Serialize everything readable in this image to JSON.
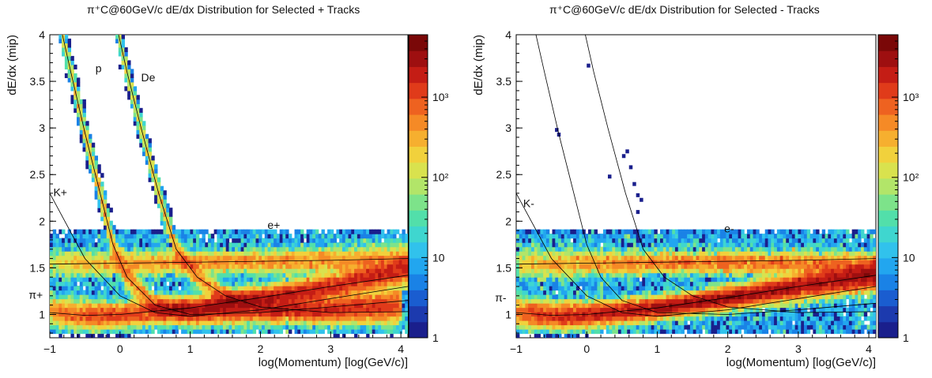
{
  "chart_data": [
    {
      "type": "heatmap",
      "title": "π⁺C@60GeV/c dE/dx Distribution for Selected + Tracks",
      "xlabel": "log(Momentum) [log(GeV/c)]",
      "ylabel": "dE/dx (mip)",
      "xlim": [
        -1,
        4.1
      ],
      "ylim": [
        0.75,
        4
      ],
      "x_ticks": [
        "−1",
        "0",
        "1",
        "2",
        "3",
        "4"
      ],
      "y_ticks": [
        "1",
        "1.5",
        "2",
        "2.5",
        "3",
        "3.5",
        "4"
      ],
      "z_scale": "log",
      "zlim": [
        1,
        6000
      ],
      "z_ticks": [
        "1",
        "10",
        "10²",
        "10³"
      ],
      "annotations": [
        {
          "text": "p",
          "x": -0.35,
          "y": 3.6
        },
        {
          "text": "De",
          "x": 0.3,
          "y": 3.5
        },
        {
          "text": "K+",
          "x": -0.95,
          "y": 2.27
        },
        {
          "text": "e+",
          "x": 2.1,
          "y": 1.92
        },
        {
          "text": "π+",
          "x": -1.3,
          "y": 1.17
        }
      ],
      "bands": [
        {
          "name": "π+",
          "points": [
            [
              -1,
              1.04
            ],
            [
              -0.5,
              0.99
            ],
            [
              0,
              1.0
            ],
            [
              1,
              1.07
            ],
            [
              2,
              1.18
            ],
            [
              3,
              1.3
            ],
            [
              3.7,
              1.42
            ],
            [
              4.1,
              1.48
            ]
          ],
          "count": 700
        },
        {
          "name": "p",
          "points": [
            [
              -0.85,
              4.1
            ],
            [
              -0.7,
              3.6
            ],
            [
              -0.5,
              2.95
            ],
            [
              -0.3,
              2.35
            ],
            [
              -0.1,
              1.75
            ],
            [
              0.1,
              1.4
            ],
            [
              0.5,
              1.1
            ],
            [
              1,
              1.0
            ],
            [
              2,
              1.02
            ],
            [
              3,
              1.08
            ],
            [
              4,
              1.15
            ]
          ],
          "count": 380
        },
        {
          "name": "De",
          "points": [
            [
              -0.05,
              4.1
            ],
            [
              0.1,
              3.6
            ],
            [
              0.3,
              3.0
            ],
            [
              0.55,
              2.3
            ],
            [
              0.8,
              1.7
            ],
            [
              1.1,
              1.4
            ],
            [
              1.5,
              1.2
            ],
            [
              2,
              1.08
            ],
            [
              3,
              1.02
            ],
            [
              4,
              1.03
            ]
          ],
          "count": 250
        },
        {
          "name": "e+",
          "points": [
            [
              -1,
              1.55
            ],
            [
              0,
              1.55
            ],
            [
              1,
              1.56
            ],
            [
              2,
              1.57
            ],
            [
              3,
              1.58
            ],
            [
              4.1,
              1.6
            ]
          ],
          "count": 300
        }
      ],
      "curves": [
        {
          "name": "K+",
          "points": [
            [
              -1,
              2.3
            ],
            [
              -0.5,
              1.6
            ],
            [
              0,
              1.2
            ],
            [
              0.5,
              1.02
            ],
            [
              1,
              0.98
            ],
            [
              2,
              1.05
            ],
            [
              3,
              1.17
            ],
            [
              4.1,
              1.3
            ]
          ]
        },
        {
          "name": "p",
          "points": [
            [
              -0.85,
              4.1
            ],
            [
              -0.7,
              3.6
            ],
            [
              -0.5,
              2.95
            ],
            [
              -0.3,
              2.35
            ],
            [
              -0.1,
              1.75
            ],
            [
              0.1,
              1.4
            ],
            [
              0.5,
              1.1
            ],
            [
              1,
              1.0
            ],
            [
              2,
              1.02
            ],
            [
              3,
              1.08
            ],
            [
              4.1,
              1.15
            ]
          ]
        },
        {
          "name": "De",
          "points": [
            [
              -0.05,
              4.1
            ],
            [
              0.1,
              3.6
            ],
            [
              0.3,
              3.0
            ],
            [
              0.55,
              2.3
            ],
            [
              0.8,
              1.7
            ],
            [
              1.1,
              1.4
            ],
            [
              1.5,
              1.2
            ],
            [
              2,
              1.08
            ],
            [
              3,
              1.02
            ],
            [
              4.1,
              1.03
            ]
          ]
        },
        {
          "name": "π",
          "points": [
            [
              -1,
              1.02
            ],
            [
              -0.5,
              0.99
            ],
            [
              0,
              1.0
            ],
            [
              1,
              1.07
            ],
            [
              2,
              1.18
            ],
            [
              3,
              1.3
            ],
            [
              4.1,
              1.42
            ]
          ]
        },
        {
          "name": "e",
          "points": [
            [
              -1,
              1.54
            ],
            [
              0,
              1.55
            ],
            [
              1,
              1.56
            ],
            [
              2,
              1.57
            ],
            [
              3,
              1.58
            ],
            [
              4.1,
              1.6
            ]
          ]
        }
      ]
    },
    {
      "type": "heatmap",
      "title": "π⁺C@60GeV/c dE/dx Distribution for Selected - Tracks",
      "xlabel": "log(Momentum) [log(GeV/c)]",
      "ylabel": "dE/dx (mip)",
      "xlim": [
        -1,
        4.1
      ],
      "ylim": [
        0.75,
        4
      ],
      "x_ticks": [
        "−1",
        "0",
        "1",
        "2",
        "3",
        "4"
      ],
      "y_ticks": [
        "1",
        "1.5",
        "2",
        "2.5",
        "3",
        "3.5",
        "4"
      ],
      "z_scale": "log",
      "zlim": [
        1,
        6000
      ],
      "z_ticks": [
        "1",
        "10",
        "10²",
        "10³"
      ],
      "annotations": [
        {
          "text": "K-",
          "x": -0.9,
          "y": 2.15
        },
        {
          "text": "e-",
          "x": 1.95,
          "y": 1.88
        },
        {
          "text": "π-",
          "x": -1.3,
          "y": 1.14
        }
      ],
      "bands": [
        {
          "name": "π-",
          "points": [
            [
              -1,
              1.03
            ],
            [
              -0.5,
              0.99
            ],
            [
              0,
              1.0
            ],
            [
              1,
              1.07
            ],
            [
              2,
              1.18
            ],
            [
              3,
              1.3
            ],
            [
              4.1,
              1.42
            ]
          ],
          "count": 750
        },
        {
          "name": "e-",
          "points": [
            [
              -1,
              1.55
            ],
            [
              0,
              1.55
            ],
            [
              1,
              1.56
            ],
            [
              2,
              1.56
            ],
            [
              3,
              1.55
            ],
            [
              4.1,
              1.52
            ]
          ],
          "count": 300
        }
      ],
      "curves": [
        {
          "name": "K-",
          "points": [
            [
              -1,
              2.3
            ],
            [
              -0.5,
              1.6
            ],
            [
              0,
              1.2
            ],
            [
              0.5,
              1.02
            ],
            [
              1,
              0.98
            ],
            [
              2,
              1.05
            ],
            [
              3,
              1.17
            ],
            [
              4.1,
              1.3
            ]
          ]
        },
        {
          "name": "p",
          "points": [
            [
              -0.75,
              4.1
            ],
            [
              -0.6,
              3.6
            ],
            [
              -0.4,
              2.95
            ],
            [
              -0.2,
              2.35
            ],
            [
              0,
              1.75
            ],
            [
              0.2,
              1.4
            ],
            [
              0.5,
              1.15
            ],
            [
              1,
              1.02
            ],
            [
              2,
              1.0
            ],
            [
              3,
              1.05
            ],
            [
              4.1,
              1.12
            ]
          ]
        },
        {
          "name": "De",
          "points": [
            [
              -0.05,
              4.1
            ],
            [
              0.1,
              3.6
            ],
            [
              0.3,
              3.0
            ],
            [
              0.55,
              2.3
            ],
            [
              0.8,
              1.7
            ],
            [
              1.1,
              1.4
            ],
            [
              1.5,
              1.2
            ],
            [
              2,
              1.08
            ],
            [
              3,
              1.02
            ],
            [
              4.1,
              1.03
            ]
          ]
        },
        {
          "name": "π",
          "points": [
            [
              -1,
              1.02
            ],
            [
              -0.5,
              0.99
            ],
            [
              0,
              1.0
            ],
            [
              1,
              1.07
            ],
            [
              2,
              1.18
            ],
            [
              3,
              1.3
            ],
            [
              4.1,
              1.42
            ]
          ]
        },
        {
          "name": "e",
          "points": [
            [
              -1,
              1.54
            ],
            [
              0,
              1.55
            ],
            [
              1,
              1.56
            ],
            [
              2,
              1.57
            ],
            [
              3,
              1.58
            ],
            [
              4.1,
              1.6
            ]
          ]
        }
      ],
      "outliers": [
        [
          0.0,
          3.69
        ],
        [
          -0.45,
          3.0
        ],
        [
          -0.42,
          2.95
        ],
        [
          0.55,
          2.77
        ],
        [
          0.5,
          2.72
        ],
        [
          0.6,
          2.6
        ],
        [
          0.3,
          2.5
        ],
        [
          0.65,
          2.42
        ],
        [
          0.7,
          2.3
        ],
        [
          0.75,
          2.25
        ],
        [
          0.7,
          2.12
        ]
      ]
    }
  ]
}
